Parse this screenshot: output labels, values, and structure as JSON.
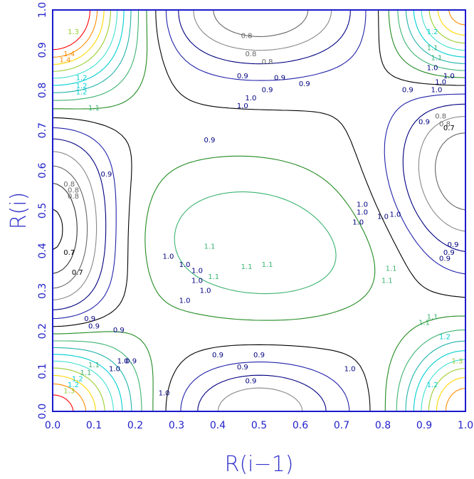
{
  "chart_data": {
    "type": "contour",
    "title": "",
    "xlabel": "R(i−1)",
    "ylabel": "R(i)",
    "xlim": [
      0.0,
      1.0
    ],
    "ylim": [
      0.0,
      1.0
    ],
    "x_ticks": [
      "0.0",
      "0.1",
      "0.2",
      "0.3",
      "0.4",
      "0.5",
      "0.6",
      "0.7",
      "0.8",
      "0.9",
      "1.0"
    ],
    "y_ticks": [
      "0.0",
      "0.1",
      "0.2",
      "0.3",
      "0.4",
      "0.5",
      "0.6",
      "0.7",
      "0.8",
      "0.9",
      "1.0"
    ],
    "grid": false,
    "legend": "none",
    "levels": [
      0.7,
      0.75,
      0.8,
      0.85,
      0.9,
      0.95,
      1.0,
      1.05,
      1.1,
      1.15,
      1.2,
      1.25,
      1.3,
      1.35,
      1.4,
      1.45
    ],
    "level_colors": {
      "0.7": "#000000",
      "0.75": "#333333",
      "0.8": "#666666",
      "0.85": "#888888",
      "0.9": "#000080",
      "0.95": "#2222aa",
      "1.0": "#006400",
      "1.05": "#228b22",
      "1.1": "#3cb371",
      "1.15": "#20b2aa",
      "1.2": "#00ced1",
      "1.25": "#40e0d0",
      "1.3": "#9acd32",
      "1.35": "#ffd700",
      "1.4": "#ff8c00",
      "1.45": "#ff0000"
    },
    "annotations": [
      {
        "text": "0.8",
        "x": 0.47,
        "y": 0.93
      },
      {
        "text": "0.8",
        "x": 0.48,
        "y": 0.885
      },
      {
        "text": "0.8",
        "x": 0.52,
        "y": 0.865
      },
      {
        "text": "0.9",
        "x": 0.46,
        "y": 0.83
      },
      {
        "text": "0.9",
        "x": 0.55,
        "y": 0.825
      },
      {
        "text": "0.9",
        "x": 0.61,
        "y": 0.81
      },
      {
        "text": "0.9",
        "x": 0.52,
        "y": 0.795
      },
      {
        "text": "0.9",
        "x": 0.86,
        "y": 0.795
      },
      {
        "text": "0.9",
        "x": 0.9,
        "y": 0.715
      },
      {
        "text": "0.8",
        "x": 0.94,
        "y": 0.73
      },
      {
        "text": "0.8",
        "x": 0.95,
        "y": 0.71
      },
      {
        "text": "0.7",
        "x": 0.96,
        "y": 0.7
      },
      {
        "text": "1.0",
        "x": 0.48,
        "y": 0.775
      },
      {
        "text": "1.0",
        "x": 0.46,
        "y": 0.755
      },
      {
        "text": "0.9",
        "x": 0.38,
        "y": 0.67
      },
      {
        "text": "0.9",
        "x": 0.13,
        "y": 0.585
      },
      {
        "text": "0.8",
        "x": 0.04,
        "y": 0.56
      },
      {
        "text": "0.8",
        "x": 0.05,
        "y": 0.545
      },
      {
        "text": "0.8",
        "x": 0.05,
        "y": 0.53
      },
      {
        "text": "0.7",
        "x": 0.04,
        "y": 0.39
      },
      {
        "text": "0.7",
        "x": 0.06,
        "y": 0.34
      },
      {
        "text": "0.9",
        "x": 0.09,
        "y": 0.225
      },
      {
        "text": "0.9",
        "x": 0.1,
        "y": 0.207
      },
      {
        "text": "0.9",
        "x": 0.16,
        "y": 0.197
      },
      {
        "text": "1.0",
        "x": 0.75,
        "y": 0.51
      },
      {
        "text": "1.0",
        "x": 0.75,
        "y": 0.49
      },
      {
        "text": "1.0",
        "x": 0.8,
        "y": 0.48
      },
      {
        "text": "1.0",
        "x": 0.83,
        "y": 0.485
      },
      {
        "text": "1.0",
        "x": 0.74,
        "y": 0.465
      },
      {
        "text": "1.1",
        "x": 0.38,
        "y": 0.405
      },
      {
        "text": "1.1",
        "x": 0.52,
        "y": 0.36
      },
      {
        "text": "1.1",
        "x": 0.47,
        "y": 0.355
      },
      {
        "text": "1.1",
        "x": 0.82,
        "y": 0.35
      },
      {
        "text": "1.1",
        "x": 0.81,
        "y": 0.32
      },
      {
        "text": "1.0",
        "x": 0.28,
        "y": 0.38
      },
      {
        "text": "1.0",
        "x": 0.32,
        "y": 0.36
      },
      {
        "text": "1.0",
        "x": 0.35,
        "y": 0.345
      },
      {
        "text": "1.0",
        "x": 0.35,
        "y": 0.32
      },
      {
        "text": "1.0",
        "x": 0.37,
        "y": 0.295
      },
      {
        "text": "1.1",
        "x": 0.39,
        "y": 0.33
      },
      {
        "text": "1.0",
        "x": 0.32,
        "y": 0.27
      },
      {
        "text": "0.9",
        "x": 0.97,
        "y": 0.41
      },
      {
        "text": "0.9",
        "x": 0.96,
        "y": 0.39
      },
      {
        "text": "0.9",
        "x": 0.95,
        "y": 0.375
      },
      {
        "text": "1.1",
        "x": 0.92,
        "y": 0.23
      },
      {
        "text": "1.1",
        "x": 0.9,
        "y": 0.215
      },
      {
        "text": "1.2",
        "x": 0.95,
        "y": 0.18
      },
      {
        "text": "1.2",
        "x": 0.92,
        "y": 0.06
      },
      {
        "text": "1.3",
        "x": 0.98,
        "y": 0.12
      },
      {
        "text": "0.9",
        "x": 0.4,
        "y": 0.135
      },
      {
        "text": "0.9",
        "x": 0.5,
        "y": 0.135
      },
      {
        "text": "0.9",
        "x": 0.46,
        "y": 0.105
      },
      {
        "text": "0.9",
        "x": 0.48,
        "y": 0.07
      },
      {
        "text": "1.0",
        "x": 0.72,
        "y": 0.1
      },
      {
        "text": "1.0",
        "x": 0.27,
        "y": 0.04
      },
      {
        "text": "1.0",
        "x": 0.17,
        "y": 0.12
      },
      {
        "text": "1.0",
        "x": 0.15,
        "y": 0.1
      },
      {
        "text": "0.9",
        "x": 0.19,
        "y": 0.12
      },
      {
        "text": "1.1",
        "x": 0.1,
        "y": 0.11
      },
      {
        "text": "1.1",
        "x": 0.08,
        "y": 0.09
      },
      {
        "text": "1.2",
        "x": 0.06,
        "y": 0.075
      },
      {
        "text": "1.2",
        "x": 0.05,
        "y": 0.06
      },
      {
        "text": "1.3",
        "x": 0.04,
        "y": 0.045
      },
      {
        "text": "1.1",
        "x": 0.1,
        "y": 0.75
      },
      {
        "text": "1.2",
        "x": 0.07,
        "y": 0.79
      },
      {
        "text": "1.2",
        "x": 0.07,
        "y": 0.805
      },
      {
        "text": "1.2",
        "x": 0.07,
        "y": 0.825
      },
      {
        "text": "1.3",
        "x": 0.05,
        "y": 0.94
      },
      {
        "text": "1.4",
        "x": 0.04,
        "y": 0.885
      },
      {
        "text": "1.4",
        "x": 0.03,
        "y": 0.87
      },
      {
        "text": "1.2",
        "x": 0.92,
        "y": 0.94
      },
      {
        "text": "1.1",
        "x": 0.92,
        "y": 0.9
      },
      {
        "text": "1.1",
        "x": 0.93,
        "y": 0.875
      },
      {
        "text": "1.0",
        "x": 0.92,
        "y": 0.85
      },
      {
        "text": "1.0",
        "x": 0.96,
        "y": 0.83
      },
      {
        "text": "1.0",
        "x": 0.94,
        "y": 0.815
      },
      {
        "text": "1.0",
        "x": 0.93,
        "y": 0.795
      }
    ]
  }
}
